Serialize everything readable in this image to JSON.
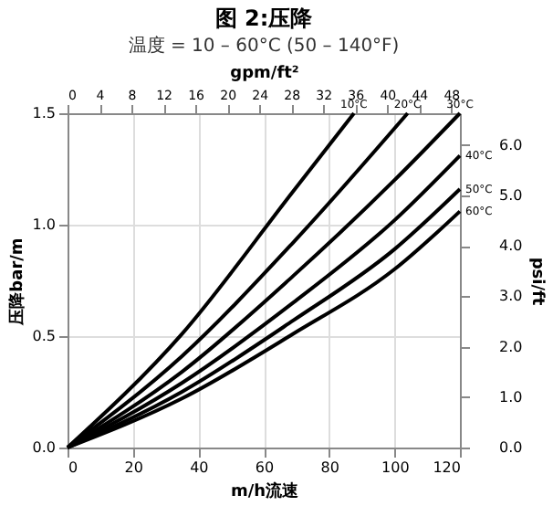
{
  "chart_data": {
    "type": "line",
    "title": "图 2:压降",
    "subtitle": "温度 = 10 – 60°C (50 – 140°F)",
    "xlabel": "m/h流速",
    "ylabel": "压降bar/m",
    "y2label": "psi/ft",
    "x2label": "gpm/ft²",
    "xlim": [
      0,
      120
    ],
    "xticks": [
      0,
      20,
      40,
      60,
      80,
      100,
      120
    ],
    "ylim": [
      0,
      1.5
    ],
    "yticks": [
      {
        "value": 0,
        "label": "0.0"
      },
      {
        "value": 0.5,
        "label": "0.5"
      },
      {
        "value": 1,
        "label": "1.0"
      },
      {
        "value": 1.5,
        "label": "1.5"
      }
    ],
    "y2lim": [
      0,
      6.63
    ],
    "y2ticks": [
      {
        "value": 0,
        "label": "0.0"
      },
      {
        "value": 1,
        "label": "1.0"
      },
      {
        "value": 2,
        "label": "2.0"
      },
      {
        "value": 3,
        "label": "3.0"
      },
      {
        "value": 4,
        "label": "4.0"
      },
      {
        "value": 5,
        "label": "5.0"
      },
      {
        "value": 6,
        "label": "6.0"
      }
    ],
    "x2lim": [
      0,
      49.1
    ],
    "x2ticks": [
      0,
      4,
      8,
      12,
      16,
      20,
      24,
      28,
      32,
      36,
      40,
      44,
      48
    ],
    "grid": true,
    "legend": false,
    "marker": "none",
    "line_style": "solid",
    "series": [
      {
        "name": "10°C",
        "color": "#000000",
        "x": [
          0,
          35,
          69,
          87.6
        ],
        "values": [
          0,
          0.51,
          1.15,
          1.5
        ]
      },
      {
        "name": "20°C",
        "color": "#000000",
        "x": [
          0,
          35,
          69,
          104
        ],
        "values": [
          0,
          0.41,
          0.92,
          1.5
        ]
      },
      {
        "name": "30°C",
        "color": "#000000",
        "x": [
          0,
          35,
          69,
          100,
          120
        ],
        "values": [
          0,
          0.34,
          0.77,
          1.2,
          1.5
        ]
      },
      {
        "name": "40°C",
        "color": "#000000",
        "x": [
          0,
          35,
          69,
          100,
          120
        ],
        "values": [
          0,
          0.29,
          0.65,
          1.02,
          1.31
        ]
      },
      {
        "name": "50°C",
        "color": "#000000",
        "x": [
          0,
          35,
          69,
          100,
          120
        ],
        "values": [
          0,
          0.25,
          0.57,
          0.89,
          1.16
        ]
      },
      {
        "name": "60°C",
        "color": "#000000",
        "x": [
          0,
          35,
          69,
          100,
          120
        ],
        "values": [
          0,
          0.22,
          0.51,
          0.8,
          1.06
        ]
      }
    ]
  }
}
